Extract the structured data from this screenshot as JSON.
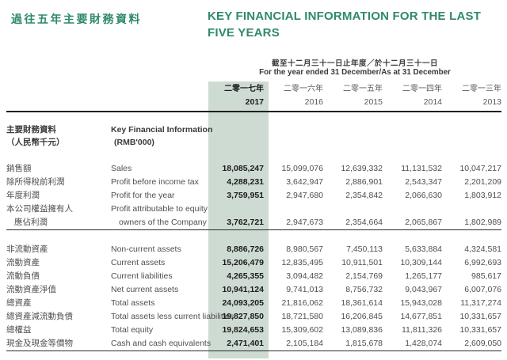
{
  "page": {
    "title_zh": "過往五年主要財務資料",
    "title_en": "KEY FINANCIAL INFORMATION FOR THE LAST FIVE YEARS"
  },
  "colors": {
    "accent_green": "#2f8a68",
    "highlight_column_bg": "#cedbd3",
    "rule_color": "#1f1f1f"
  },
  "table": {
    "period_header_zh": "截至十二月三十一日止年度／於十二月三十一日",
    "period_header_en": "For the year ended 31 December/As at 31 December",
    "columns": [
      {
        "label_zh": "二零一七年",
        "year": "2017",
        "highlight": true
      },
      {
        "label_zh": "二零一六年",
        "year": "2016",
        "highlight": false
      },
      {
        "label_zh": "二零一五年",
        "year": "2015",
        "highlight": false
      },
      {
        "label_zh": "二零一四年",
        "year": "2014",
        "highlight": false
      },
      {
        "label_zh": "二零一三年",
        "year": "2013",
        "highlight": false
      }
    ],
    "section_header": {
      "zh_line1": "主要財務資料",
      "zh_line2": "（人民幣千元）",
      "en_line1": "Key Financial Information",
      "en_line2": "(RMB'000)"
    },
    "groups": [
      {
        "rows": [
          {
            "zh": "銷售額",
            "en": "Sales",
            "values": [
              "18,085,247",
              "15,099,076",
              "12,639,332",
              "11,131,532",
              "10,047,217"
            ]
          },
          {
            "zh": "除所得稅前利潤",
            "en": "Profit before income tax",
            "values": [
              "4,288,231",
              "3,642,947",
              "2,886,901",
              "2,543,347",
              "2,201,209"
            ]
          },
          {
            "zh": "年度利潤",
            "en": "Profit for the year",
            "values": [
              "3,759,951",
              "2,947,680",
              "2,354,842",
              "2,066,630",
              "1,803,912"
            ]
          },
          {
            "zh": "本公司權益擁有人",
            "en": "Profit attributable to equity",
            "values": [
              "",
              "",
              "",
              "",
              ""
            ]
          },
          {
            "zh": "應佔利潤",
            "zh_indent": true,
            "en": "owners of the Company",
            "en_indent": true,
            "values": [
              "3,762,721",
              "2,947,673",
              "2,354,664",
              "2,065,867",
              "1,802,989"
            ]
          }
        ]
      },
      {
        "rows": [
          {
            "zh": "非流動資產",
            "en": "Non-current assets",
            "values": [
              "8,886,726",
              "8,980,567",
              "7,450,113",
              "5,633,884",
              "4,324,581"
            ]
          },
          {
            "zh": "流動資產",
            "en": "Current assets",
            "values": [
              "15,206,479",
              "12,835,495",
              "10,911,501",
              "10,309,144",
              "6,992,693"
            ]
          },
          {
            "zh": "流動負債",
            "en": "Current liabilities",
            "values": [
              "4,265,355",
              "3,094,482",
              "2,154,769",
              "1,265,177",
              "985,617"
            ]
          },
          {
            "zh": "流動資產淨值",
            "en": "Net current assets",
            "values": [
              "10,941,124",
              "9,741,013",
              "8,756,732",
              "9,043,967",
              "6,007,076"
            ]
          },
          {
            "zh": "總資產",
            "en": "Total assets",
            "values": [
              "24,093,205",
              "21,816,062",
              "18,361,614",
              "15,943,028",
              "11,317,274"
            ]
          },
          {
            "zh": "總資產減流動負債",
            "en": "Total assets less current liabilities",
            "values": [
              "19,827,850",
              "18,721,580",
              "16,206,845",
              "14,677,851",
              "10,331,657"
            ]
          },
          {
            "zh": "總權益",
            "en": "Total equity",
            "values": [
              "19,824,653",
              "15,309,602",
              "13,089,836",
              "11,811,326",
              "10,331,657"
            ]
          },
          {
            "zh": "現金及現金等價物",
            "en": "Cash and cash equivalents",
            "values": [
              "2,471,401",
              "2,105,184",
              "1,815,678",
              "1,428,074",
              "2,609,050"
            ]
          }
        ]
      }
    ]
  }
}
